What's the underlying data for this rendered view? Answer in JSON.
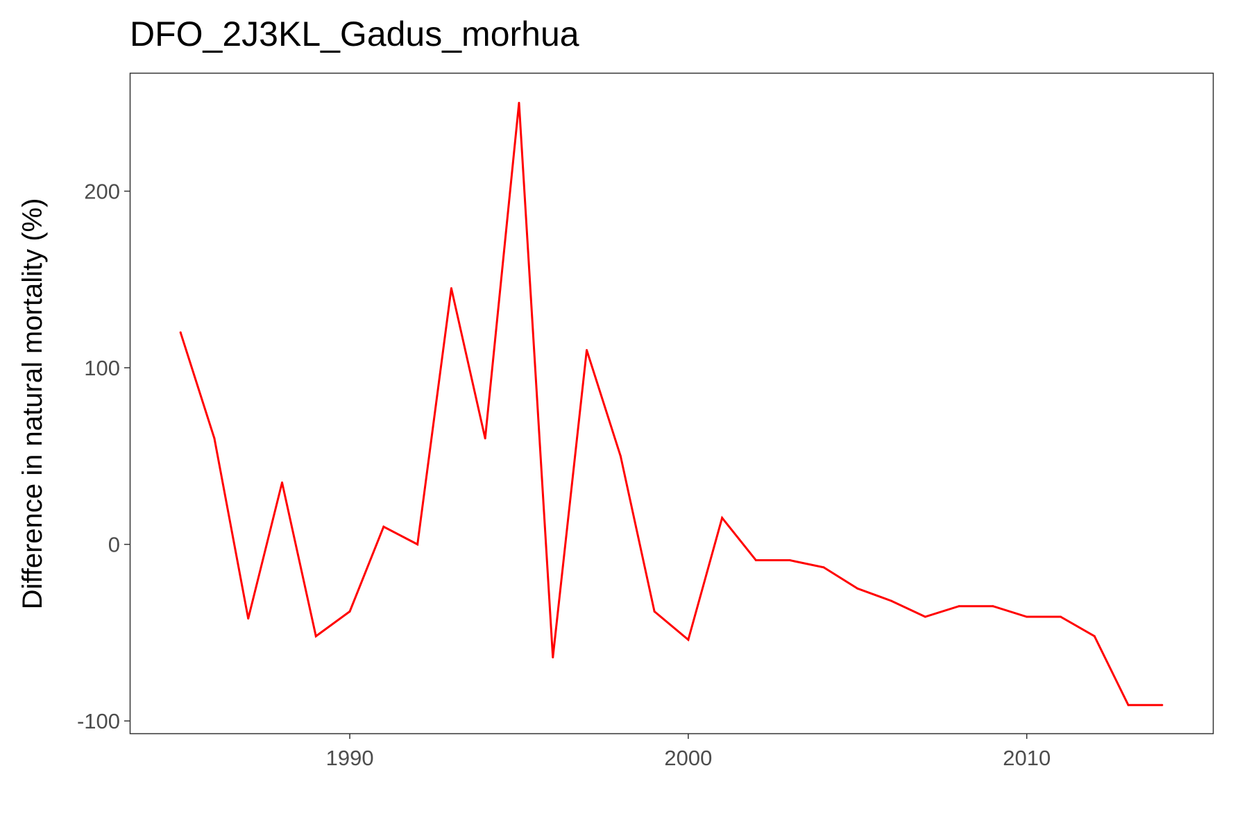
{
  "chart_data": {
    "type": "line",
    "title": "DFO_2J3KL_Gadus_morhua",
    "xlabel": "",
    "ylabel": "Difference in natural mortality (%)",
    "xlim": [
      1983.5,
      2015.5
    ],
    "ylim": [
      -107,
      267
    ],
    "x_ticks": [
      1990,
      2000,
      2010
    ],
    "y_ticks": [
      -100,
      0,
      100,
      200
    ],
    "grid": false,
    "legend": "none",
    "line_color": "#ff0000",
    "series": [
      {
        "x": [
          1985,
          1986,
          1987,
          1988,
          1989,
          1990,
          1991,
          1992,
          1993,
          1994,
          1995,
          1996,
          1997,
          1998,
          1999,
          2000,
          2001,
          2002,
          2003,
          2004,
          2005,
          2006,
          2007,
          2008,
          2009,
          2010,
          2011,
          2012,
          2013,
          2014
        ],
        "values": [
          120,
          60,
          -42,
          35,
          -52,
          -38,
          10,
          0,
          145,
          60,
          250,
          -64,
          110,
          50,
          -38,
          -54,
          15,
          -9,
          -9,
          -13,
          -25,
          -32,
          -41,
          -35,
          -35,
          -41,
          -41,
          -52,
          -91,
          -91
        ]
      }
    ]
  }
}
